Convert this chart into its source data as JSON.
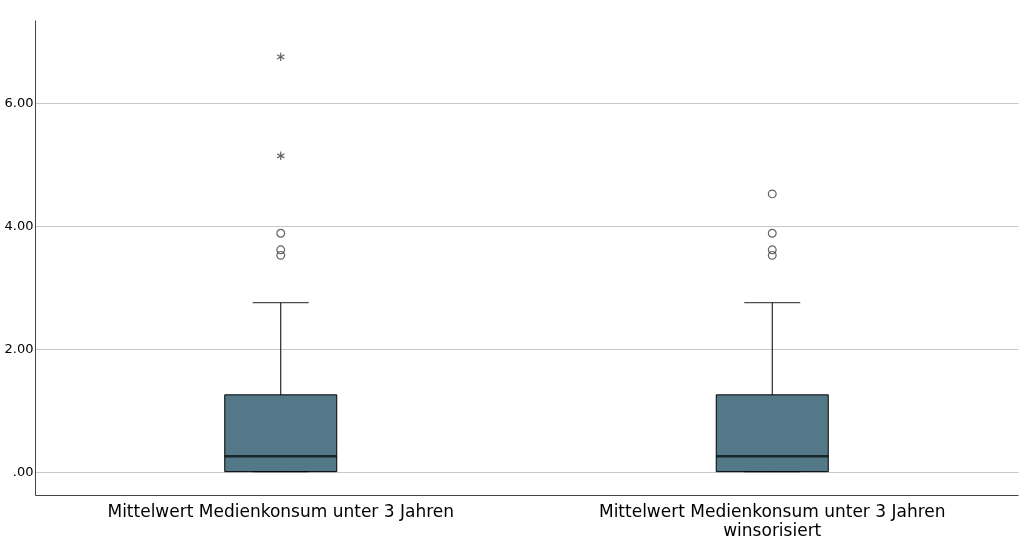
{
  "chart_data": {
    "type": "box",
    "categories": [
      "Mittelwert Medienkonsum unter 3 Jahren",
      "Mittelwert Medienkonsum unter 3 Jahren winsorisiert"
    ],
    "boxes": [
      {
        "low": 0,
        "q1": 0,
        "median": 0.25,
        "q3": 1.25,
        "high": 2.75,
        "outliers": [
          3.52,
          3.61,
          3.88,
          5.14,
          6.75
        ]
      },
      {
        "low": 0,
        "q1": 0,
        "median": 0.25,
        "q3": 1.25,
        "high": 2.75,
        "outliers": [
          3.52,
          3.61,
          3.88,
          4.52
        ]
      }
    ],
    "color": "#537887",
    "ylim": [
      -0.38,
      7.35
    ],
    "yticks": [
      {
        "value": 0,
        "label": ".00"
      },
      {
        "value": 2,
        "label": "2.00"
      },
      {
        "value": 4,
        "label": "4.00"
      },
      {
        "value": 6,
        "label": "6.00"
      }
    ],
    "grid": "y"
  }
}
